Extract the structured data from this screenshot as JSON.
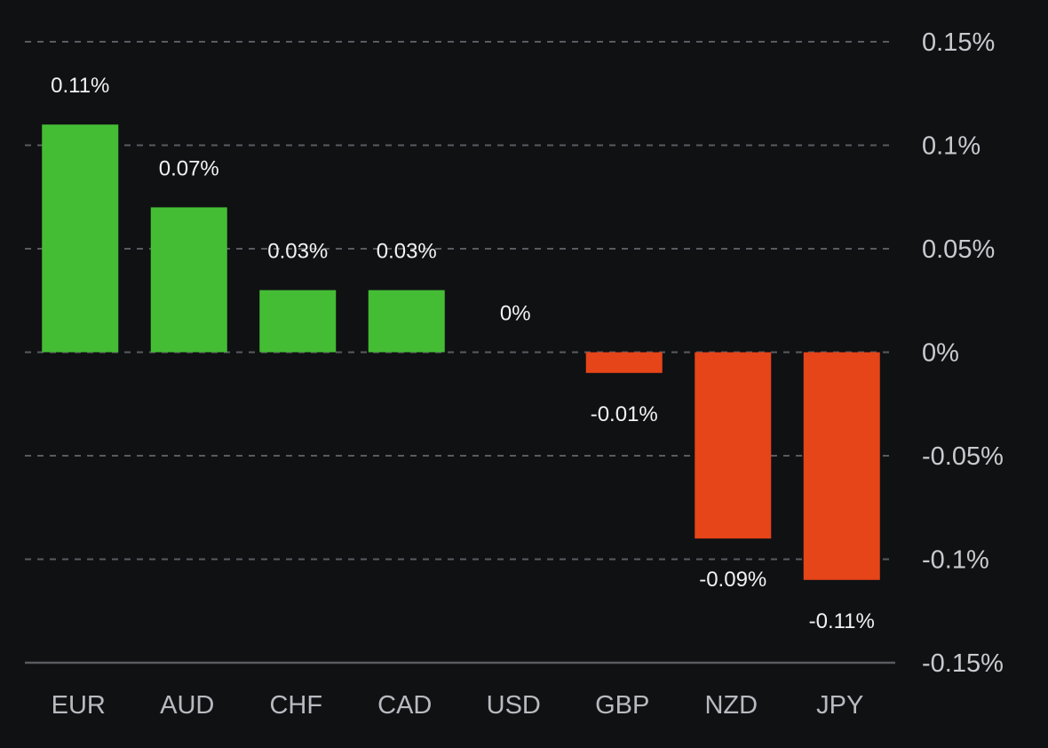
{
  "chart_data": {
    "type": "bar",
    "title": "",
    "xlabel": "",
    "ylabel": "",
    "categories": [
      "EUR",
      "AUD",
      "CHF",
      "CAD",
      "USD",
      "GBP",
      "NZD",
      "JPY"
    ],
    "values": [
      0.11,
      0.07,
      0.03,
      0.03,
      0,
      -0.01,
      -0.09,
      -0.11
    ],
    "data_labels": [
      "0.11%",
      "0.07%",
      "0.03%",
      "0.03%",
      "0%",
      "-0.01%",
      "-0.09%",
      "-0.11%"
    ],
    "ylim": [
      -0.15,
      0.15
    ],
    "yticks": [
      0.15,
      0.1,
      0.05,
      0,
      -0.05,
      -0.1,
      -0.15
    ],
    "ytick_labels": [
      "0.15%",
      "0.1%",
      "0.05%",
      "0%",
      "-0.05%",
      "-0.1%",
      "-0.15%"
    ],
    "y_axis_position": "right",
    "grid": true,
    "legend": "none",
    "colors": {
      "positive": "#44bd35",
      "negative": "#e64419",
      "background": "#101113",
      "grid": "#5a5b60",
      "axis": "#5a5b60"
    }
  }
}
